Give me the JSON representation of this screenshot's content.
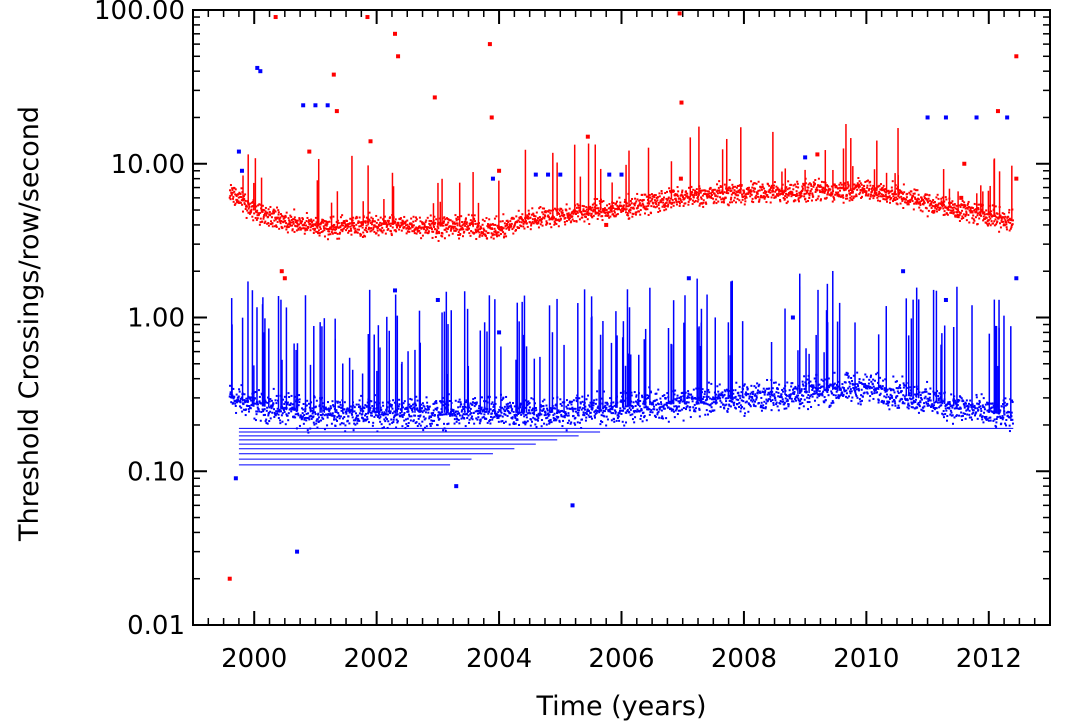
{
  "chart_data": {
    "type": "scatter",
    "title": "",
    "xlabel": "Time (years)",
    "ylabel": "Threshold Crossings/row/second",
    "xlim": [
      1999.0,
      2013.0
    ],
    "ylim": [
      0.01,
      100.0
    ],
    "yscale": "log",
    "grid": false,
    "x_ticks": [
      2000,
      2002,
      2004,
      2006,
      2008,
      2010,
      2012
    ],
    "x_tick_labels": [
      "2000",
      "2002",
      "2004",
      "2006",
      "2008",
      "2010",
      "2012"
    ],
    "y_ticks": [
      0.01,
      0.1,
      1.0,
      10.0,
      100.0
    ],
    "y_tick_labels": [
      "0.01",
      "0.10",
      "1.00",
      "10.00",
      "100.00"
    ],
    "series": [
      {
        "color": "#ff0000",
        "trend_x": [
          1999.6,
          2000.0,
          2000.5,
          2001.0,
          2001.5,
          2002.0,
          2002.5,
          2003.0,
          2003.5,
          2004.0,
          2004.5,
          2005.0,
          2005.5,
          2006.0,
          2006.5,
          2007.0,
          2007.5,
          2008.0,
          2008.5,
          2009.0,
          2009.5,
          2010.0,
          2010.5,
          2011.0,
          2011.5,
          2012.0,
          2012.4
        ],
        "trend_y": [
          6.5,
          5.0,
          4.2,
          3.9,
          3.9,
          4.0,
          4.0,
          3.9,
          3.9,
          3.7,
          4.4,
          4.6,
          4.9,
          5.1,
          5.6,
          6.0,
          6.3,
          6.5,
          6.5,
          6.6,
          6.7,
          6.8,
          6.2,
          5.6,
          5.0,
          4.6,
          4.2
        ],
        "outliers": [
          [
            1999.6,
            0.02
          ],
          [
            2000.35,
            90
          ],
          [
            2000.45,
            2.0
          ],
          [
            2000.5,
            1.8
          ],
          [
            2000.9,
            12
          ],
          [
            2001.3,
            38
          ],
          [
            2001.35,
            22
          ],
          [
            2001.85,
            90
          ],
          [
            2001.9,
            14
          ],
          [
            2002.3,
            70
          ],
          [
            2002.35,
            50
          ],
          [
            2002.95,
            27
          ],
          [
            2003.85,
            60
          ],
          [
            2003.88,
            20
          ],
          [
            2004.0,
            9
          ],
          [
            2005.45,
            15
          ],
          [
            2005.75,
            4.0
          ],
          [
            2006.95,
            95
          ],
          [
            2006.98,
            25
          ],
          [
            2006.97,
            8
          ],
          [
            2009.2,
            11.5
          ],
          [
            2011.6,
            10
          ],
          [
            2011.55,
            6
          ],
          [
            2012.15,
            22
          ],
          [
            2012.45,
            50
          ],
          [
            2012.45,
            8
          ]
        ]
      },
      {
        "color": "#0000ff",
        "trend_x": [
          1999.6,
          2000.0,
          2000.5,
          2001.0,
          2001.5,
          2002.0,
          2002.5,
          2003.0,
          2003.5,
          2004.0,
          2004.5,
          2005.0,
          2005.5,
          2006.0,
          2006.5,
          2007.0,
          2007.5,
          2008.0,
          2008.5,
          2009.0,
          2009.5,
          2010.0,
          2010.5,
          2011.0,
          2011.5,
          2012.0,
          2012.4
        ],
        "trend_y": [
          0.3,
          0.27,
          0.25,
          0.24,
          0.24,
          0.24,
          0.24,
          0.24,
          0.24,
          0.24,
          0.24,
          0.24,
          0.25,
          0.26,
          0.27,
          0.28,
          0.29,
          0.3,
          0.31,
          0.32,
          0.34,
          0.35,
          0.32,
          0.29,
          0.26,
          0.24,
          0.23
        ],
        "outliers": [
          [
            2000.05,
            42
          ],
          [
            2000.1,
            40
          ],
          [
            2000.8,
            24
          ],
          [
            2001.0,
            24
          ],
          [
            2001.2,
            24
          ],
          [
            1999.75,
            12
          ],
          [
            1999.8,
            9
          ],
          [
            2003.9,
            8
          ],
          [
            2004.6,
            8.5
          ],
          [
            2004.8,
            8.5
          ],
          [
            2005.0,
            8.5
          ],
          [
            2005.8,
            8.5
          ],
          [
            2006.0,
            8.5
          ],
          [
            2007.1,
            1.8
          ],
          [
            2011.0,
            20
          ],
          [
            2011.3,
            20
          ],
          [
            2011.8,
            20
          ],
          [
            2012.3,
            20
          ],
          [
            2000.7,
            0.03
          ],
          [
            2005.2,
            0.06
          ],
          [
            1999.7,
            0.09
          ],
          [
            2003.3,
            0.08
          ],
          [
            2009.0,
            11
          ],
          [
            2010.6,
            2.0
          ],
          [
            2011.3,
            1.3
          ],
          [
            2002.3,
            1.5
          ],
          [
            2003.0,
            1.3
          ],
          [
            2004.0,
            0.8
          ],
          [
            2008.8,
            1.0
          ],
          [
            2012.45,
            1.8
          ]
        ]
      }
    ]
  }
}
